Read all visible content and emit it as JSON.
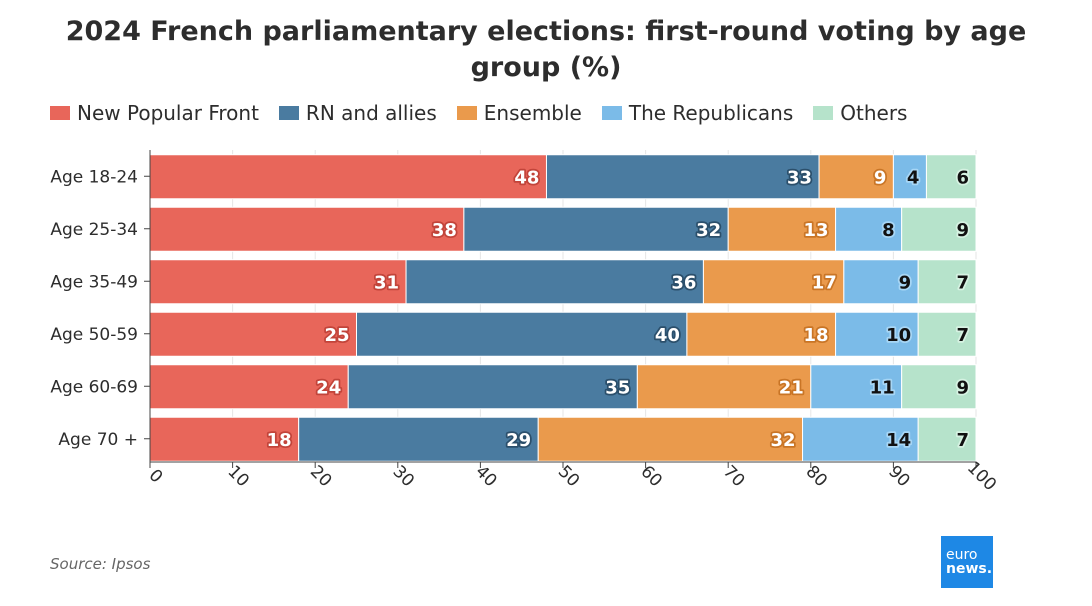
{
  "chart_data": {
    "type": "bar",
    "orientation": "horizontal",
    "stacked": true,
    "title": "2024 French parliamentary elections: first-round voting by age group (%)",
    "categories": [
      "Age 18-24",
      "Age 25-34",
      "Age 35-49",
      "Age 50-59",
      "Age 60-69",
      "Age 70 +"
    ],
    "series": [
      {
        "name": "New Popular Front",
        "color": "#e8665a",
        "values": [
          48,
          38,
          31,
          25,
          24,
          18
        ]
      },
      {
        "name": "RN and allies",
        "color": "#4a7ba0",
        "values": [
          33,
          32,
          36,
          40,
          35,
          29
        ]
      },
      {
        "name": "Ensemble",
        "color": "#ea9a4c",
        "values": [
          9,
          13,
          17,
          18,
          21,
          32
        ]
      },
      {
        "name": "The Republicans",
        "color": "#7bbbe8",
        "values": [
          4,
          8,
          9,
          10,
          11,
          14
        ]
      },
      {
        "name": "Others",
        "color": "#b6e3cb",
        "values": [
          6,
          9,
          7,
          7,
          9,
          7
        ]
      }
    ],
    "xlim": [
      0,
      100
    ],
    "xticks": [
      0,
      10,
      20,
      30,
      40,
      50,
      60,
      70,
      80,
      90,
      100
    ],
    "grid": true,
    "legend_position": "top-left"
  },
  "source": "Source: Ipsos",
  "logo": {
    "line1": "euro",
    "line2": "news."
  }
}
